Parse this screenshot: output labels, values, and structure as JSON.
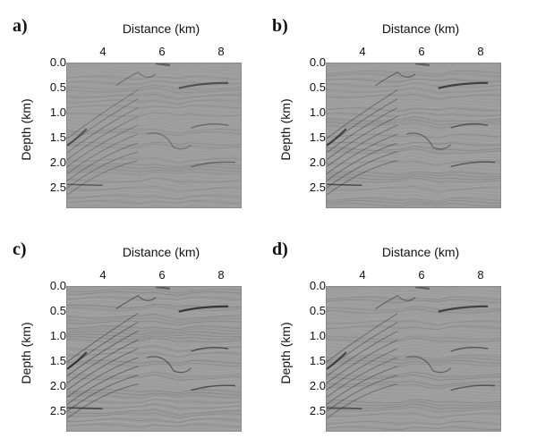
{
  "panels": [
    {
      "letter": "a)",
      "xlabel": "Distance (km)",
      "ylabel": "Depth (km)",
      "xticks": [
        "4",
        "6",
        "8"
      ],
      "yticks": [
        "0.0",
        "0.5",
        "1.0",
        "1.5",
        "2.0",
        "2.5"
      ]
    },
    {
      "letter": "b)",
      "xlabel": "Distance (km)",
      "ylabel": "Depth (km)",
      "xticks": [
        "4",
        "6",
        "8"
      ],
      "yticks": [
        "0.0",
        "0.5",
        "1.0",
        "1.5",
        "2.0",
        "2.5"
      ]
    },
    {
      "letter": "c)",
      "xlabel": "Distance (km)",
      "ylabel": "Depth (km)",
      "xticks": [
        "4",
        "6",
        "8"
      ],
      "yticks": [
        "0.0",
        "0.5",
        "1.0",
        "1.5",
        "2.0",
        "2.5"
      ]
    },
    {
      "letter": "d)",
      "xlabel": "Distance (km)",
      "ylabel": "Depth (km)",
      "xticks": [
        "4",
        "6",
        "8"
      ],
      "yticks": [
        "0.0",
        "0.5",
        "1.0",
        "1.5",
        "2.0",
        "2.5"
      ]
    }
  ],
  "colors": {
    "background": "#ffffff",
    "image_base": "#9c9c9c",
    "reflector_dark": "#1a1a1a",
    "reflector_light": "#e6e6e6"
  }
}
